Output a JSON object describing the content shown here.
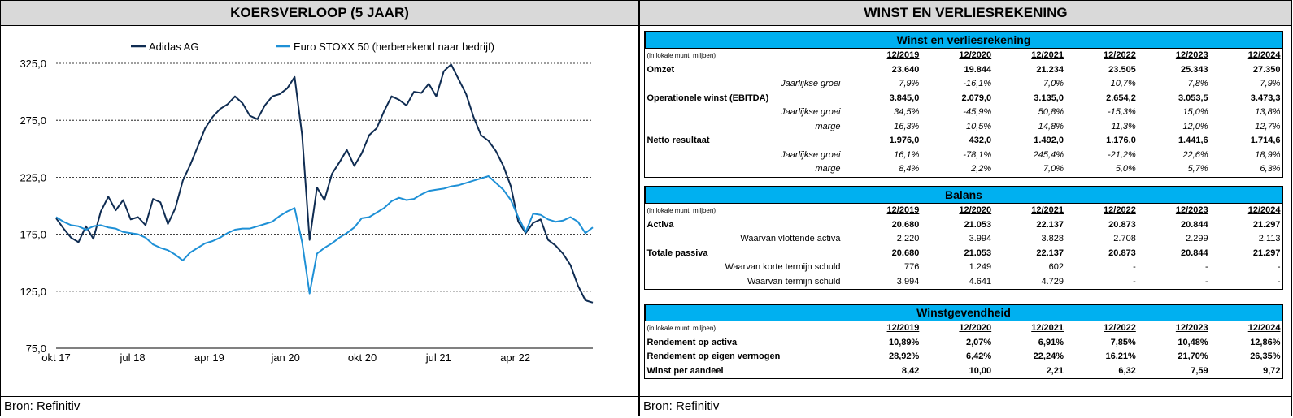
{
  "left": {
    "title": "KOERSVERLOOP (5 JAAR)",
    "source": "Bron: Refinitiv"
  },
  "right": {
    "title": "WINST EN VERLIESREKENING",
    "source": "Bron: Refinitiv"
  },
  "chart_data": {
    "type": "line",
    "yticks": [
      "325,0",
      "275,0",
      "225,0",
      "175,0",
      "125,0",
      "75,0"
    ],
    "ytick_values": [
      325,
      275,
      225,
      175,
      125,
      75
    ],
    "ylim": [
      75,
      325
    ],
    "xticks": [
      "okt 17",
      "jul 18",
      "apr 19",
      "jan 20",
      "okt 20",
      "jul 21",
      "apr 22"
    ],
    "grid": "horizontal dashed",
    "legend_position": "top",
    "series": [
      {
        "name": "Adidas AG",
        "color": "#0f2c52",
        "values": [
          189,
          180,
          172,
          168,
          182,
          171,
          195,
          208,
          196,
          205,
          188,
          190,
          183,
          206,
          203,
          184,
          198,
          222,
          236,
          252,
          268,
          278,
          285,
          289,
          296,
          290,
          279,
          276,
          288,
          296,
          298,
          303,
          313,
          262,
          170,
          216,
          205,
          228,
          238,
          249,
          235,
          246,
          262,
          268,
          283,
          296,
          293,
          288,
          300,
          299,
          307,
          296,
          318,
          324,
          311,
          298,
          278,
          262,
          257,
          248,
          235,
          217,
          186,
          176,
          185,
          188,
          170,
          165,
          158,
          148,
          130,
          117,
          115
        ]
      },
      {
        "name": "Euro STOXX 50 (herberekend naar bedrijf)",
        "color": "#1e90d6",
        "values": [
          190,
          186,
          183,
          182,
          179,
          182,
          183,
          181,
          180,
          177,
          176,
          175,
          172,
          166,
          163,
          161,
          157,
          152,
          159,
          163,
          167,
          169,
          172,
          176,
          179,
          180,
          180,
          182,
          184,
          186,
          191,
          195,
          198,
          168,
          123,
          158,
          163,
          167,
          172,
          176,
          181,
          189,
          190,
          194,
          198,
          204,
          207,
          205,
          206,
          210,
          213,
          214,
          215,
          217,
          218,
          220,
          222,
          224,
          226,
          220,
          214,
          205,
          190,
          177,
          193,
          192,
          188,
          186,
          187,
          190,
          186,
          176,
          181
        ]
      }
    ]
  },
  "income": {
    "title": "Winst en verliesrekening",
    "unit_label": "(in lokale munt, miljoen)",
    "years": [
      "12/2019",
      "12/2020",
      "12/2021",
      "12/2022",
      "12/2023",
      "12/2024"
    ],
    "rows": [
      {
        "label": "Omzet",
        "style": "bold",
        "values": [
          "23.640",
          "19.844",
          "21.234",
          "23.505",
          "25.343",
          "27.350"
        ]
      },
      {
        "label": "Jaarlijkse groei",
        "style": "ital",
        "values": [
          "7,9%",
          "-16,1%",
          "7,0%",
          "10,7%",
          "7,8%",
          "7,9%"
        ]
      },
      {
        "label": "Operationele winst (EBITDA)",
        "style": "bold",
        "values": [
          "3.845,0",
          "2.079,0",
          "3.135,0",
          "2.654,2",
          "3.053,5",
          "3.473,3"
        ]
      },
      {
        "label": "Jaarlijkse groei",
        "style": "ital",
        "values": [
          "34,5%",
          "-45,9%",
          "50,8%",
          "-15,3%",
          "15,0%",
          "13,8%"
        ]
      },
      {
        "label": "marge",
        "style": "ital",
        "values": [
          "16,3%",
          "10,5%",
          "14,8%",
          "11,3%",
          "12,0%",
          "12,7%"
        ]
      },
      {
        "label": "Netto resultaat",
        "style": "bold",
        "values": [
          "1.976,0",
          "432,0",
          "1.492,0",
          "1.176,0",
          "1.441,6",
          "1.714,6"
        ]
      },
      {
        "label": "Jaarlijkse groei",
        "style": "ital",
        "values": [
          "16,1%",
          "-78,1%",
          "245,4%",
          "-21,2%",
          "22,6%",
          "18,9%"
        ]
      },
      {
        "label": "marge",
        "style": "ital",
        "values": [
          "8,4%",
          "2,2%",
          "7,0%",
          "5,0%",
          "5,7%",
          "6,3%"
        ]
      }
    ]
  },
  "balance": {
    "title": "Balans",
    "unit_label": "(in lokale munt, miljoen)",
    "years": [
      "12/2019",
      "12/2020",
      "12/2021",
      "12/2022",
      "12/2023",
      "12/2024"
    ],
    "rows": [
      {
        "label": "Activa",
        "style": "bold",
        "values": [
          "20.680",
          "21.053",
          "22.137",
          "20.873",
          "20.844",
          "21.297"
        ]
      },
      {
        "label": "Waarvan vlottende activa",
        "style": "sub",
        "values": [
          "2.220",
          "3.994",
          "3.828",
          "2.708",
          "2.299",
          "2.113"
        ]
      },
      {
        "label": "Totale passiva",
        "style": "bold",
        "values": [
          "20.680",
          "21.053",
          "22.137",
          "20.873",
          "20.844",
          "21.297"
        ]
      },
      {
        "label": "Waarvan korte termijn schuld",
        "style": "sub",
        "values": [
          "776",
          "1.249",
          "602",
          "-",
          "-",
          "-"
        ]
      },
      {
        "label": "Waarvan termijn schuld",
        "style": "sub",
        "values": [
          "3.994",
          "4.641",
          "4.729",
          "-",
          "-",
          "-"
        ]
      }
    ]
  },
  "profit": {
    "title": "Winstgevendheid",
    "unit_label": "(in lokale munt, miljoen)",
    "years": [
      "12/2019",
      "12/2020",
      "12/2021",
      "12/2022",
      "12/2023",
      "12/2024"
    ],
    "rows": [
      {
        "label": "Rendement op activa",
        "style": "bold",
        "values": [
          "10,89%",
          "2,07%",
          "6,91%",
          "7,85%",
          "10,48%",
          "12,86%"
        ]
      },
      {
        "label": "Rendement op eigen vermogen",
        "style": "bold",
        "values": [
          "28,92%",
          "6,42%",
          "22,24%",
          "16,21%",
          "21,70%",
          "26,35%"
        ]
      },
      {
        "label": "Winst per aandeel",
        "style": "bold",
        "values": [
          "8,42",
          "10,00",
          "2,21",
          "6,32",
          "7,59",
          "9,72"
        ]
      }
    ]
  }
}
